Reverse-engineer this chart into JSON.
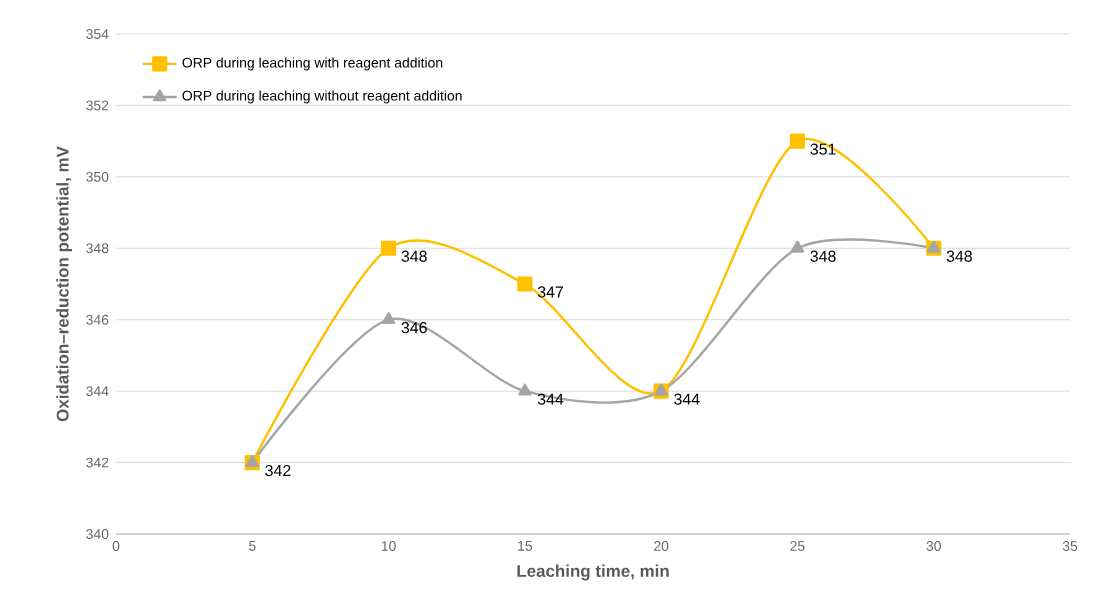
{
  "chart_data": {
    "type": "line",
    "xlabel": "Leaching time, min",
    "ylabel": "Oxidation–reduction potential, mV",
    "x": [
      5,
      10,
      15,
      20,
      25,
      30
    ],
    "series": [
      {
        "name": "ORP during leaching with reagent addition",
        "color": "#ffc000",
        "marker": "square",
        "values": [
          342,
          348,
          347,
          344,
          351,
          348
        ],
        "value_labels": [
          "342",
          "348",
          "347",
          "344",
          "351",
          "348"
        ]
      },
      {
        "name": "ORP during leaching without reagent addition",
        "color": "#a5a5a5",
        "marker": "triangle",
        "values": [
          342,
          346,
          344,
          344,
          348,
          348
        ],
        "value_labels": [
          null,
          "346",
          "344",
          null,
          "348",
          null
        ]
      }
    ],
    "xlim": [
      0,
      35
    ],
    "xticks": [
      0,
      5,
      10,
      15,
      20,
      25,
      30,
      35
    ],
    "ylim": [
      340,
      354
    ],
    "yticks": [
      340,
      342,
      344,
      346,
      348,
      350,
      352,
      354
    ],
    "grid": "y",
    "legend": "top left",
    "line_style": "solid"
  }
}
